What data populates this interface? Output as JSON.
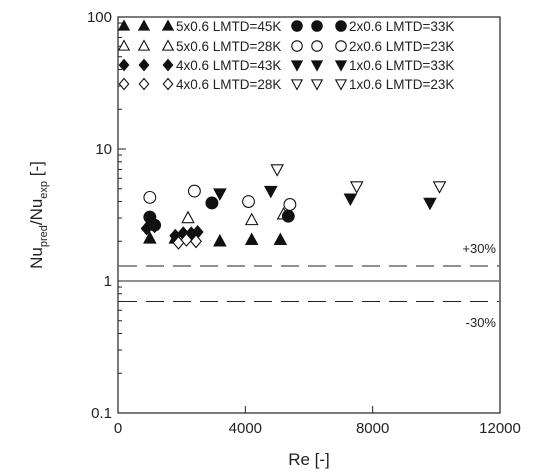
{
  "chart_data": {
    "type": "scatter",
    "xlabel": "Re [-]",
    "ylabel_parts": {
      "main": "Nu",
      "sub1": "pred",
      "mid": "/Nu",
      "sub2": "exp",
      "unit": " [-]"
    },
    "xlim": [
      0,
      12000
    ],
    "ylim": [
      0.1,
      100
    ],
    "yscale": "log",
    "grid": false,
    "legend_position": "top-left",
    "x_ticks": [
      {
        "value": 0,
        "label": "0"
      },
      {
        "value": 4000,
        "label": "4000"
      },
      {
        "value": 8000,
        "label": "8000"
      },
      {
        "value": 12000,
        "label": "12000"
      }
    ],
    "y_ticks": [
      {
        "value": 0.1,
        "label": "0.1"
      },
      {
        "value": 1,
        "label": "1"
      },
      {
        "value": 10,
        "label": "10"
      },
      {
        "value": 100,
        "label": "100"
      }
    ],
    "reference_lines": [
      {
        "y": 1,
        "style": "solid"
      },
      {
        "y": 1.3,
        "style": "dashed",
        "label": "+30%"
      },
      {
        "y": 0.7,
        "style": "dashed",
        "label": "-30%"
      }
    ],
    "series": [
      {
        "name": "5x0.6 LMTD=45K",
        "marker": "triangle-up",
        "filled": true,
        "points": [
          [
            1000,
            2.1
          ],
          [
            1800,
            2.1
          ],
          [
            3200,
            2.0
          ],
          [
            4200,
            2.05
          ],
          [
            5100,
            2.05
          ]
        ]
      },
      {
        "name": "5x0.6 LMTD=28K",
        "marker": "triangle-up",
        "filled": false,
        "points": [
          [
            2200,
            3.0
          ],
          [
            4200,
            2.9
          ],
          [
            5200,
            3.2
          ]
        ]
      },
      {
        "name": "4x0.6 LMTD=43K",
        "marker": "diamond",
        "filled": true,
        "points": [
          [
            900,
            2.5
          ],
          [
            1150,
            2.6
          ],
          [
            1800,
            2.2
          ],
          [
            2050,
            2.3
          ],
          [
            2300,
            2.3
          ],
          [
            2500,
            2.35
          ]
        ]
      },
      {
        "name": "4x0.6 LMTD=28K",
        "marker": "diamond",
        "filled": false,
        "points": [
          [
            1900,
            1.95
          ],
          [
            2150,
            2.05
          ],
          [
            2450,
            2.0
          ]
        ]
      },
      {
        "name": "2x0.6 LMTD=33K",
        "marker": "circle",
        "filled": true,
        "points": [
          [
            1000,
            3.05
          ],
          [
            1150,
            2.65
          ],
          [
            2950,
            3.9
          ],
          [
            5350,
            3.1
          ]
        ]
      },
      {
        "name": "2x0.6 LMTD=23K",
        "marker": "circle",
        "filled": false,
        "points": [
          [
            1000,
            4.3
          ],
          [
            2400,
            4.8
          ],
          [
            4100,
            4.0
          ],
          [
            5400,
            3.8
          ]
        ]
      },
      {
        "name": "1x0.6 LMTD=33K",
        "marker": "triangle-down",
        "filled": true,
        "points": [
          [
            3200,
            4.6
          ],
          [
            4800,
            4.8
          ],
          [
            7300,
            4.2
          ],
          [
            9800,
            3.9
          ]
        ]
      },
      {
        "name": "1x0.6 LMTD=23K",
        "marker": "triangle-down",
        "filled": false,
        "points": [
          [
            5000,
            7.0
          ],
          [
            7500,
            5.2
          ],
          [
            10100,
            5.2
          ]
        ]
      }
    ]
  }
}
